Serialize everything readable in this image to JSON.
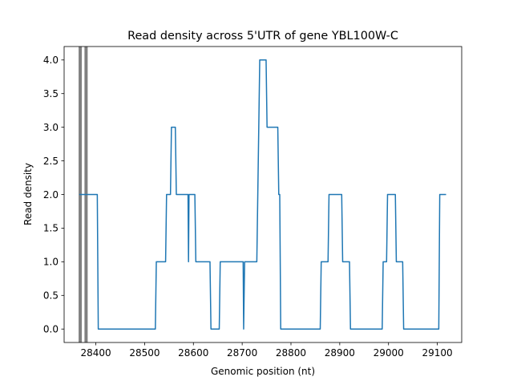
{
  "chart_data": {
    "type": "line",
    "title": "Read density across 5'UTR of gene YBL100W-C",
    "xlabel": "Genomic position (nt)",
    "ylabel": "Read density",
    "xlim": [
      28335,
      29150
    ],
    "ylim": [
      -0.2,
      4.2
    ],
    "xticks": [
      28400,
      28500,
      28600,
      28700,
      28800,
      28900,
      29000,
      29100
    ],
    "yticks": [
      0.0,
      0.5,
      1.0,
      1.5,
      2.0,
      2.5,
      3.0,
      3.5,
      4.0
    ],
    "xtick_labels": [
      "28400",
      "28500",
      "28600",
      "28700",
      "28800",
      "28900",
      "29000",
      "29100"
    ],
    "ytick_labels": [
      "0.0",
      "0.5",
      "1.0",
      "1.5",
      "2.0",
      "2.5",
      "3.0",
      "3.5",
      "4.0"
    ],
    "grid": false,
    "markers": {
      "color": "#808080",
      "x": [
        28368,
        28380
      ]
    },
    "series": [
      {
        "color": "#1f77b4",
        "points": [
          [
            28366,
            2
          ],
          [
            28403,
            2
          ],
          [
            28405,
            0
          ],
          [
            28522,
            0
          ],
          [
            28524,
            1
          ],
          [
            28543,
            1
          ],
          [
            28545,
            2
          ],
          [
            28553,
            2
          ],
          [
            28555,
            3
          ],
          [
            28563,
            3
          ],
          [
            28565,
            2
          ],
          [
            28589,
            2
          ],
          [
            28590,
            1
          ],
          [
            28591,
            2
          ],
          [
            28602,
            2
          ],
          [
            28603,
            2
          ],
          [
            28605,
            1
          ],
          [
            28634,
            1
          ],
          [
            28636,
            0
          ],
          [
            28653,
            0
          ],
          [
            28655,
            1
          ],
          [
            28702,
            1
          ],
          [
            28703,
            0
          ],
          [
            28705,
            1
          ],
          [
            28730,
            1
          ],
          [
            28732,
            2
          ],
          [
            28734,
            3
          ],
          [
            28736,
            4
          ],
          [
            28749,
            4
          ],
          [
            28751,
            3
          ],
          [
            28773,
            3
          ],
          [
            28775,
            2
          ],
          [
            28777,
            2
          ],
          [
            28779,
            0
          ],
          [
            28860,
            0
          ],
          [
            28862,
            1
          ],
          [
            28876,
            1
          ],
          [
            28878,
            2
          ],
          [
            28904,
            2
          ],
          [
            28906,
            1
          ],
          [
            28920,
            1
          ],
          [
            28922,
            0
          ],
          [
            28987,
            0
          ],
          [
            28989,
            1
          ],
          [
            28996,
            1
          ],
          [
            28998,
            2
          ],
          [
            29014,
            2
          ],
          [
            29016,
            1
          ],
          [
            29029,
            1
          ],
          [
            29031,
            0
          ],
          [
            29103,
            0
          ],
          [
            29105,
            2
          ],
          [
            29118,
            2
          ]
        ]
      }
    ]
  }
}
